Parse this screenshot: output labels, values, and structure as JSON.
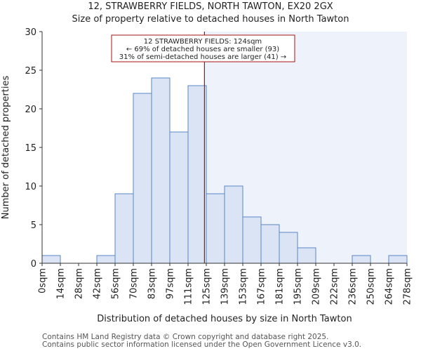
{
  "chart_data": {
    "type": "bar",
    "title": "12, STRAWBERRY FIELDS, NORTH TAWTON, EX20 2GX",
    "subtitle": "Size of property relative to detached houses in North Tawton",
    "xlabel": "Distribution of detached houses by size in North Tawton",
    "ylabel": "Number of detached properties",
    "ylim": [
      0,
      30
    ],
    "yticks": [
      0,
      5,
      10,
      15,
      20,
      25,
      30
    ],
    "bin_edges": [
      0,
      14,
      28,
      42,
      56,
      70,
      83,
      97,
      111,
      125,
      139,
      153,
      167,
      181,
      195,
      209,
      222,
      236,
      250,
      264,
      278
    ],
    "tick_labels": [
      "0sqm",
      "14sqm",
      "28sqm",
      "42sqm",
      "56sqm",
      "70sqm",
      "83sqm",
      "97sqm",
      "111sqm",
      "125sqm",
      "139sqm",
      "153sqm",
      "167sqm",
      "181sqm",
      "195sqm",
      "209sqm",
      "222sqm",
      "236sqm",
      "250sqm",
      "264sqm",
      "278sqm"
    ],
    "values": [
      1,
      0,
      0,
      1,
      9,
      22,
      24,
      17,
      23,
      9,
      10,
      6,
      5,
      4,
      2,
      0,
      0,
      1,
      0,
      1
    ],
    "marker_bin_position": 8.9,
    "annotation_lines": [
      "12 STRAWBERRY FIELDS: 124sqm",
      "← 69% of detached houses are smaller (93)",
      "31% of semi-detached houses are larger (41) →"
    ],
    "colors": {
      "bar_fill": "#dae4f5",
      "bar_stroke": "#5b87c7",
      "marker": "#aa1111",
      "shade": "#eef2fb"
    }
  },
  "footer": {
    "line1": "Contains HM Land Registry data © Crown copyright and database right 2025.",
    "line2": "Contains public sector information licensed under the Open Government Licence v3.0."
  }
}
